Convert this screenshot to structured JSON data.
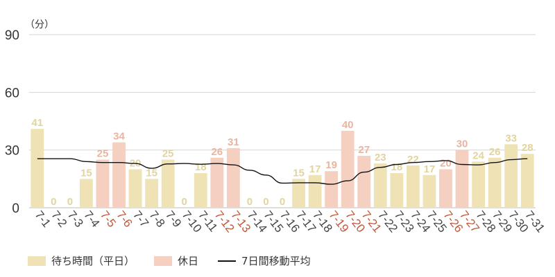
{
  "colors": {
    "weekday": "#efe3b6",
    "holiday": "#f5cfc0",
    "weekday_label": "#e2d49c",
    "holiday_label": "#eab4a0",
    "holiday_tick": "#c0573a",
    "grid": "#d6d6d6",
    "axis_text": "#333333",
    "tick_text": "#444444",
    "avg_line": "#111111"
  },
  "chart_data": {
    "type": "bar",
    "unit_label": "（分）",
    "ylim": [
      0,
      90
    ],
    "yticks": [
      0,
      30,
      60,
      90
    ],
    "categories": [
      "7-1",
      "7-2",
      "7-3",
      "7-4",
      "7-5",
      "7-6",
      "7-7",
      "7-8",
      "7-9",
      "7-10",
      "7-11",
      "7-12",
      "7-13",
      "7-14",
      "7-15",
      "7-16",
      "7-17",
      "7-18",
      "7-19",
      "7-20",
      "7-21",
      "7-22",
      "7-23",
      "7-24",
      "7-25",
      "7-26",
      "7-27",
      "7-28",
      "7-29",
      "7-30",
      "7-31"
    ],
    "values": [
      41,
      0,
      0,
      15,
      25,
      34,
      20,
      15,
      25,
      0,
      18,
      26,
      31,
      0,
      0,
      0,
      15,
      17,
      19,
      40,
      27,
      23,
      18,
      22,
      17,
      20,
      30,
      24,
      26,
      33,
      28
    ],
    "holiday": [
      false,
      false,
      false,
      false,
      true,
      true,
      false,
      false,
      false,
      false,
      false,
      true,
      true,
      false,
      false,
      false,
      false,
      false,
      true,
      true,
      true,
      false,
      false,
      false,
      false,
      true,
      true,
      false,
      false,
      false,
      false
    ],
    "series": [
      {
        "name": "待ち時間（平日）",
        "type": "bar"
      },
      {
        "name": "休日",
        "type": "bar"
      },
      {
        "name": "7日間移動平均",
        "type": "line",
        "values": [
          25.5,
          25.5,
          25.5,
          24,
          23.5,
          23.5,
          23,
          20.5,
          22.8,
          23,
          22.6,
          23,
          22.3,
          19.5,
          17,
          12.8,
          13,
          13,
          12.2,
          14,
          18.5,
          21,
          22.5,
          23.5,
          24,
          24.5,
          22.5,
          22.3,
          23.5,
          25,
          25.5
        ]
      }
    ],
    "grid": true,
    "legend_position": "bottom-left"
  }
}
